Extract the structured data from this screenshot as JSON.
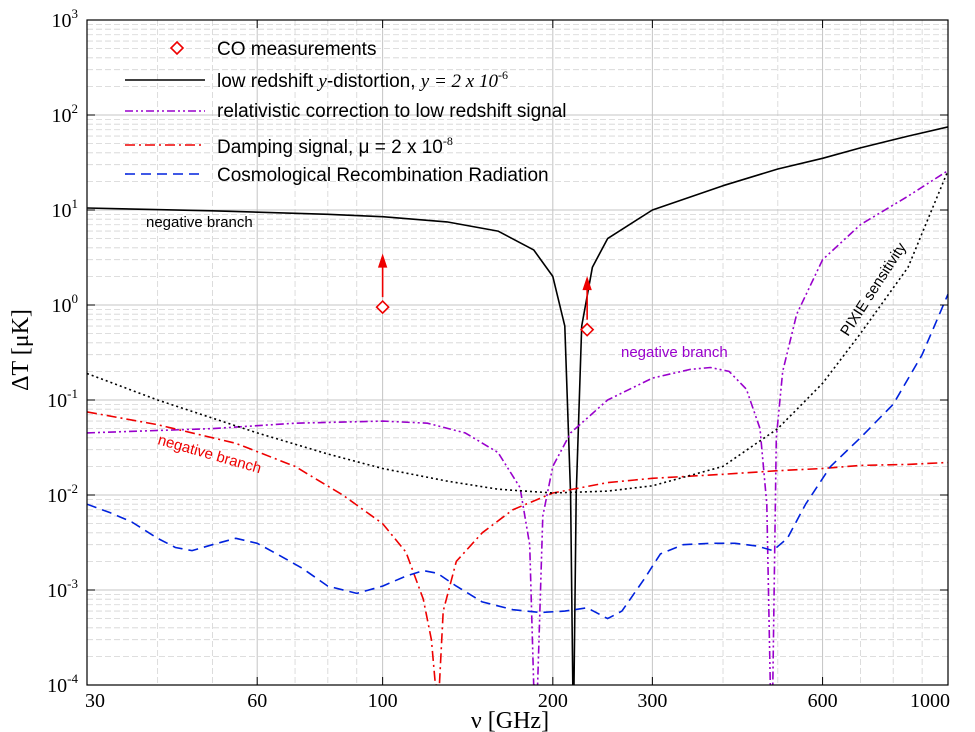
{
  "chart_data": {
    "type": "line",
    "xlabel": "ν  [GHz]",
    "ylabel": "ΔT  [μK]",
    "xscale": "log",
    "yscale": "log",
    "xlim": [
      30,
      1000
    ],
    "ylim": [
      0.0001,
      1000
    ],
    "grid": true,
    "legend_position": "top-left",
    "x_ticks": [
      {
        "value": 30,
        "label": "30"
      },
      {
        "value": 60,
        "label": "60"
      },
      {
        "value": 100,
        "label": "100"
      },
      {
        "value": 200,
        "label": "200"
      },
      {
        "value": 300,
        "label": "300"
      },
      {
        "value": 600,
        "label": "600"
      },
      {
        "value": 1000,
        "label": "1000"
      }
    ],
    "y_ticks": [
      {
        "value": 0.0001,
        "base": "10",
        "exp": "-4"
      },
      {
        "value": 0.001,
        "base": "10",
        "exp": "-3"
      },
      {
        "value": 0.01,
        "base": "10",
        "exp": "-2"
      },
      {
        "value": 0.1,
        "base": "10",
        "exp": "-1"
      },
      {
        "value": 1,
        "base": "10",
        "exp": "0"
      },
      {
        "value": 10,
        "base": "10",
        "exp": "1"
      },
      {
        "value": 100,
        "base": "10",
        "exp": "2"
      },
      {
        "value": 1000,
        "base": "10",
        "exp": "3"
      }
    ],
    "legend": {
      "co": "CO measurements",
      "y_main": "low redshift ",
      "y_var": "y",
      "y_mid": "-distortion, ",
      "y_eq": "y = 2 x 10",
      "y_exp": "-6",
      "rel": "relativistic correction to low redshift signal",
      "damp_main": "Damping signal, μ = 2 x 10",
      "damp_exp": "-8",
      "crr": "Cosmological Recombination Radiation"
    },
    "annotations": {
      "neg_black": "negative branch",
      "neg_purple": "negative branch",
      "neg_red": "negative branch",
      "pixie": "PIXIE sensitivity"
    },
    "colors": {
      "y": "#000000",
      "rel": "#9900cc",
      "damp": "#ee0000",
      "crr": "#0022dd",
      "pixie": "#000000",
      "co": "#ee0000"
    },
    "co_measurements": [
      {
        "x": 100,
        "y": 0.95,
        "lower_limit": true
      },
      {
        "x": 230,
        "y": 0.55,
        "lower_limit": true
      }
    ],
    "series": [
      {
        "name": "low redshift y-distortion, y = 2 x 10^-6",
        "style": "solid",
        "points": [
          [
            30,
            10.5
          ],
          [
            50,
            9.8
          ],
          [
            80,
            9
          ],
          [
            100,
            8.5
          ],
          [
            130,
            7.5
          ],
          [
            160,
            6
          ],
          [
            185,
            3.8
          ],
          [
            200,
            2
          ],
          [
            210,
            0.6
          ],
          [
            215,
            0.01
          ],
          [
            217,
            0.0001
          ],
          [
            218,
            0.0001
          ],
          [
            220,
            0.01
          ],
          [
            225,
            0.6
          ],
          [
            235,
            2.5
          ],
          [
            250,
            5
          ],
          [
            300,
            10
          ],
          [
            400,
            18
          ],
          [
            500,
            27
          ],
          [
            600,
            35
          ],
          [
            700,
            45
          ],
          [
            850,
            60
          ],
          [
            1000,
            75
          ]
        ]
      },
      {
        "name": "relativistic correction to low redshift signal",
        "style": "dashdotdot",
        "points": [
          [
            30,
            0.045
          ],
          [
            50,
            0.05
          ],
          [
            70,
            0.057
          ],
          [
            100,
            0.06
          ],
          [
            120,
            0.057
          ],
          [
            140,
            0.045
          ],
          [
            160,
            0.028
          ],
          [
            175,
            0.012
          ],
          [
            182,
            0.003
          ],
          [
            185,
            0.0001
          ],
          [
            188,
            0.0001
          ],
          [
            192,
            0.006
          ],
          [
            200,
            0.02
          ],
          [
            215,
            0.045
          ],
          [
            250,
            0.1
          ],
          [
            300,
            0.17
          ],
          [
            350,
            0.21
          ],
          [
            380,
            0.22
          ],
          [
            410,
            0.2
          ],
          [
            440,
            0.13
          ],
          [
            465,
            0.05
          ],
          [
            478,
            0.008
          ],
          [
            485,
            0.0001
          ],
          [
            490,
            0.0001
          ],
          [
            497,
            0.04
          ],
          [
            510,
            0.2
          ],
          [
            540,
            0.8
          ],
          [
            600,
            3
          ],
          [
            700,
            7
          ],
          [
            850,
            14
          ],
          [
            1000,
            26
          ]
        ]
      },
      {
        "name": "Damping signal, μ = 2 x 10^-8",
        "style": "dashdot",
        "points": [
          [
            30,
            0.075
          ],
          [
            40,
            0.055
          ],
          [
            55,
            0.035
          ],
          [
            70,
            0.02
          ],
          [
            85,
            0.01
          ],
          [
            100,
            0.005
          ],
          [
            110,
            0.0025
          ],
          [
            118,
            0.0008
          ],
          [
            122,
            0.0003
          ],
          [
            124,
            0.0001
          ],
          [
            126,
            0.0001
          ],
          [
            128,
            0.0006
          ],
          [
            135,
            0.002
          ],
          [
            150,
            0.004
          ],
          [
            170,
            0.007
          ],
          [
            200,
            0.0105
          ],
          [
            250,
            0.0135
          ],
          [
            300,
            0.015
          ],
          [
            400,
            0.0165
          ],
          [
            500,
            0.018
          ],
          [
            600,
            0.019
          ],
          [
            700,
            0.0205
          ],
          [
            850,
            0.021
          ],
          [
            1000,
            0.022
          ]
        ]
      },
      {
        "name": "Cosmological Recombination Radiation",
        "style": "dashed",
        "points": [
          [
            30,
            0.008
          ],
          [
            33,
            0.0065
          ],
          [
            36,
            0.0052
          ],
          [
            40,
            0.0035
          ],
          [
            43,
            0.0028
          ],
          [
            46,
            0.0026
          ],
          [
            50,
            0.003
          ],
          [
            55,
            0.0035
          ],
          [
            60,
            0.0031
          ],
          [
            65,
            0.0024
          ],
          [
            72,
            0.0017
          ],
          [
            80,
            0.0011
          ],
          [
            90,
            0.00092
          ],
          [
            100,
            0.0011
          ],
          [
            110,
            0.0014
          ],
          [
            118,
            0.0016
          ],
          [
            125,
            0.0015
          ],
          [
            135,
            0.0011
          ],
          [
            150,
            0.00075
          ],
          [
            170,
            0.00062
          ],
          [
            190,
            0.00058
          ],
          [
            210,
            0.0006
          ],
          [
            230,
            0.00065
          ],
          [
            250,
            0.0005
          ],
          [
            265,
            0.0006
          ],
          [
            290,
            0.0013
          ],
          [
            310,
            0.0024
          ],
          [
            340,
            0.003
          ],
          [
            380,
            0.0031
          ],
          [
            420,
            0.0031
          ],
          [
            460,
            0.0029
          ],
          [
            490,
            0.0026
          ],
          [
            520,
            0.0035
          ],
          [
            560,
            0.008
          ],
          [
            620,
            0.02
          ],
          [
            700,
            0.04
          ],
          [
            800,
            0.09
          ],
          [
            900,
            0.3
          ],
          [
            1000,
            1.3
          ]
        ]
      },
      {
        "name": "PIXIE sensitivity",
        "style": "dotted",
        "points": [
          [
            30,
            0.19
          ],
          [
            40,
            0.1
          ],
          [
            60,
            0.045
          ],
          [
            80,
            0.027
          ],
          [
            100,
            0.019
          ],
          [
            130,
            0.014
          ],
          [
            160,
            0.0115
          ],
          [
            200,
            0.0105
          ],
          [
            250,
            0.011
          ],
          [
            300,
            0.0125
          ],
          [
            400,
            0.02
          ],
          [
            500,
            0.05
          ],
          [
            600,
            0.15
          ],
          [
            700,
            0.5
          ],
          [
            850,
            2.5
          ],
          [
            1000,
            26
          ]
        ]
      }
    ]
  }
}
